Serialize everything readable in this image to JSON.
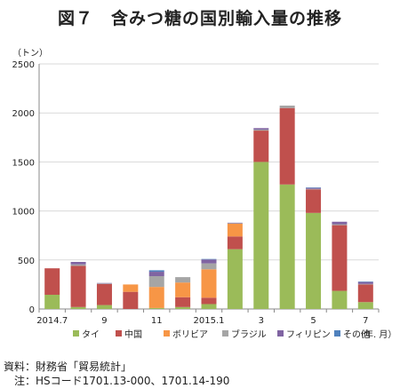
{
  "title": "図７　含みつ糖の国別輸入量の推移",
  "unit_label": "（トン）",
  "source_note": "資料：財務省「貿易統計」",
  "footnote": "注：HSコード1701.13-000、1701.14-190",
  "chart_data": {
    "type": "bar",
    "stacked": true,
    "ylim": [
      0,
      2500
    ],
    "yticks": [
      0,
      500,
      1000,
      1500,
      2000,
      2500
    ],
    "categories": [
      "2014.7",
      "2014.8",
      "2014.9",
      "2014.10",
      "2014.11",
      "2014.12",
      "2015.1",
      "2015.2",
      "2015.3",
      "2015.4",
      "2015.5",
      "2015.6",
      "2015.7"
    ],
    "x_tick_labels": [
      "2014.7",
      "",
      "9",
      "",
      "11",
      "",
      "2015.1",
      "",
      "3",
      "",
      "5",
      "",
      "7"
    ],
    "x_unit_label": "（年. 月）",
    "series": [
      {
        "name": "タイ",
        "color": "#9bbb59",
        "values": [
          145,
          20,
          40,
          0,
          10,
          20,
          50,
          610,
          1500,
          1270,
          980,
          185,
          70
        ]
      },
      {
        "name": "中国",
        "color": "#c0504d",
        "values": [
          270,
          420,
          215,
          175,
          0,
          100,
          65,
          130,
          320,
          780,
          240,
          670,
          180
        ]
      },
      {
        "name": "ボリビア",
        "color": "#f79646",
        "values": [
          0,
          0,
          0,
          75,
          215,
          150,
          290,
          130,
          0,
          0,
          0,
          0,
          0
        ]
      },
      {
        "name": "ブラジル",
        "color": "#a5a5a5",
        "values": [
          0,
          15,
          5,
          0,
          110,
          55,
          60,
          5,
          10,
          25,
          5,
          10,
          5
        ]
      },
      {
        "name": "フィリピン",
        "color": "#8064a2",
        "values": [
          0,
          25,
          5,
          0,
          45,
          0,
          40,
          5,
          15,
          0,
          10,
          25,
          20
        ]
      },
      {
        "name": "その他",
        "color": "#4f81bd",
        "values": [
          0,
          0,
          0,
          0,
          15,
          0,
          5,
          0,
          0,
          0,
          5,
          0,
          5
        ]
      }
    ]
  }
}
